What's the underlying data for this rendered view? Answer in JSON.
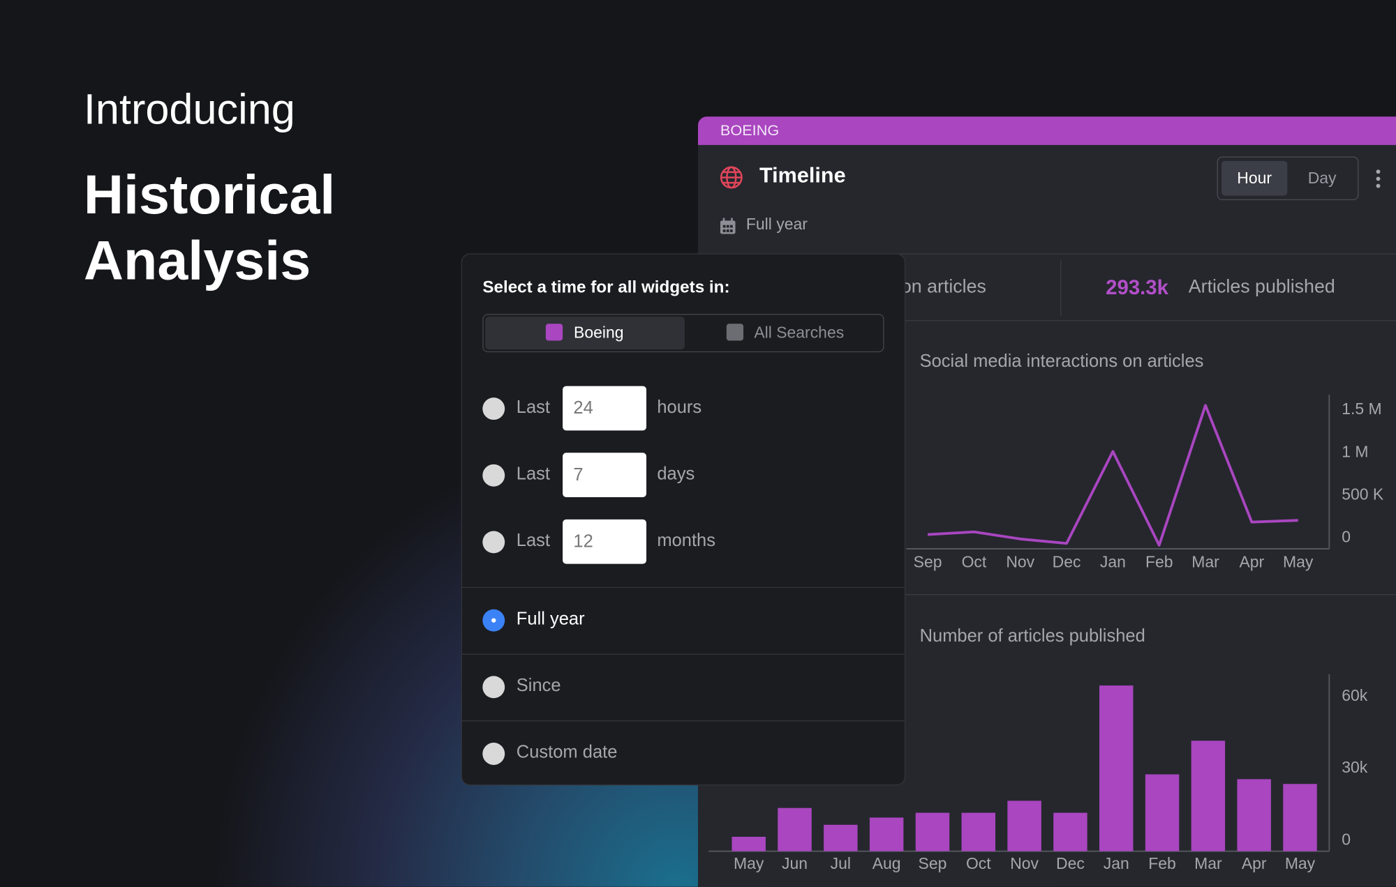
{
  "hero": {
    "intro": "Introducing",
    "title": "Historical Analysis"
  },
  "widget": {
    "tag": "BOEING",
    "title": "Timeline",
    "granularity": [
      "Hour",
      "Day"
    ],
    "period": "Full year",
    "stats": [
      {
        "label": "ns on articles"
      },
      {
        "value": "293.3k",
        "label": "Articles published"
      }
    ]
  },
  "chart_data": [
    {
      "type": "line",
      "title": "Social media interactions on articles",
      "color": "#a946c0",
      "categories": [
        "Sep",
        "Oct",
        "Nov",
        "Dec",
        "Jan",
        "Feb",
        "Mar",
        "Apr",
        "May"
      ],
      "values": [
        167000,
        198000,
        115000,
        63000,
        1140000,
        42000,
        1680000,
        313000,
        333000
      ],
      "ylim": [
        0,
        1700000
      ],
      "yticks": [
        0,
        {
          "value": 500000,
          "label": "500 K"
        },
        {
          "value": 1000000,
          "label": "1 M"
        },
        {
          "value": 1500000,
          "label": "1.5 M"
        }
      ]
    },
    {
      "type": "bar",
      "title": "Number of articles published",
      "color": "#a946c0",
      "categories": [
        "May",
        "Jun",
        "Jul",
        "Aug",
        "Sep",
        "Oct",
        "Nov",
        "Dec",
        "Jan",
        "Feb",
        "Mar",
        "Apr",
        "May"
      ],
      "values": [
        6000,
        18000,
        11000,
        14000,
        16000,
        16000,
        21000,
        16000,
        69000,
        32000,
        46000,
        30000,
        28000
      ],
      "ylim": [
        0,
        70000
      ],
      "yticks": [
        0,
        {
          "value": 30000,
          "label": "30k"
        },
        {
          "value": 60000,
          "label": "60k"
        }
      ]
    }
  ],
  "time_picker": {
    "title": "Select a time for all widgets in:",
    "scopes": [
      "Boeing",
      "All Searches"
    ],
    "options": [
      {
        "label": "Last",
        "amount": "24",
        "unit": "hours"
      },
      {
        "label": "Last",
        "amount": "7",
        "unit": "days"
      },
      {
        "label": "Last",
        "amount": "12",
        "unit": "months"
      },
      {
        "label": "Full year"
      },
      {
        "label": "Since"
      },
      {
        "label": "Custom date"
      }
    ]
  }
}
